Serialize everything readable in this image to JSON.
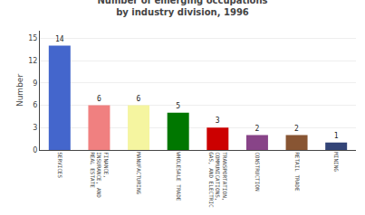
{
  "chart_data": {
    "type": "bar",
    "title": "Number of emerging occupations\nby industry division, 1996",
    "ylabel": "Number",
    "categories": [
      "SERVICES",
      "FINANCE,\nINSURANCE, AND\nREAL ESTATE",
      "MANUFACTURING",
      "WHOLESALE TRADE",
      "TRANSPORTATION,\nCOMMUNICATIONS,\nGAS, AND ELECTRIC",
      "CONSTRUCTION",
      "RETAIL TRADE",
      "MINING"
    ],
    "values": [
      14,
      6,
      6,
      5,
      3,
      2,
      2,
      1
    ],
    "colors": [
      "#4466cc",
      "#f08080",
      "#f5f5a0",
      "#007700",
      "#cc0000",
      "#884488",
      "#885533",
      "#334477"
    ],
    "ylim": [
      0,
      16
    ],
    "yticks": [
      0,
      3,
      6,
      9,
      12,
      15
    ],
    "grid": true,
    "data_labels": true
  }
}
